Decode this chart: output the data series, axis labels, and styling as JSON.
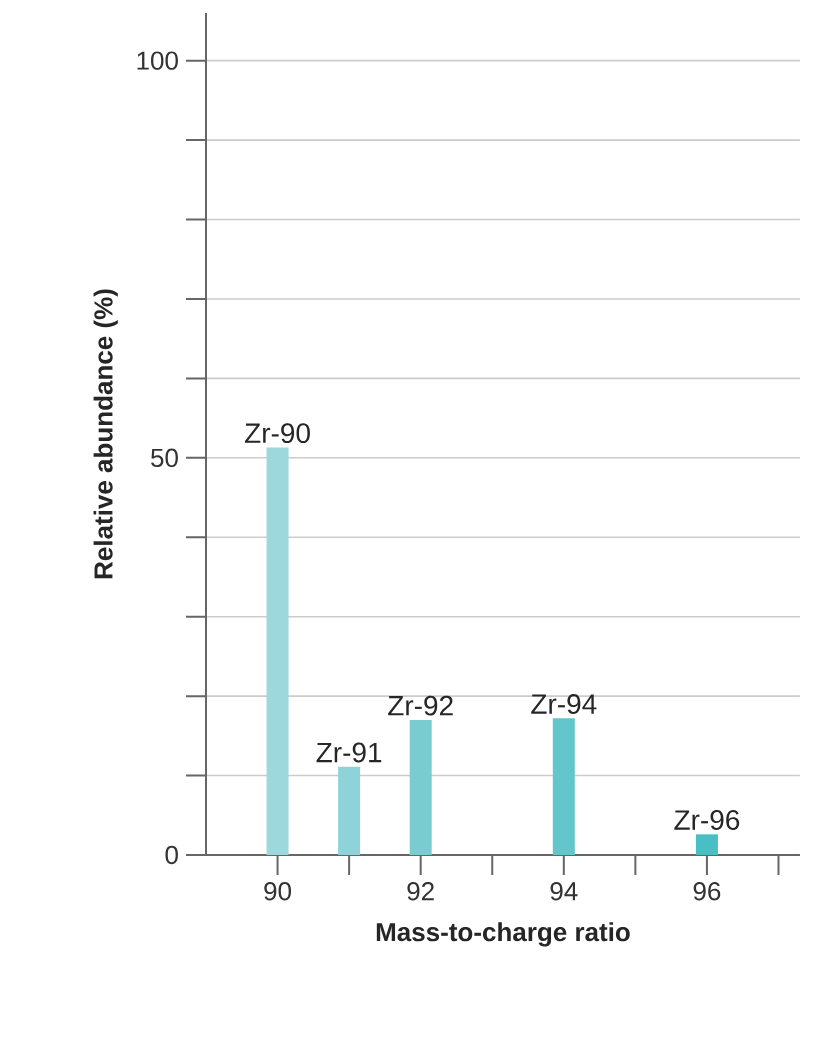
{
  "chart_data": {
    "type": "bar",
    "xlabel": "Mass-to-charge ratio",
    "ylabel": "Relative abundance (%)",
    "x": [
      90,
      91,
      92,
      94,
      96
    ],
    "values": [
      51.3,
      11.1,
      17.0,
      17.2,
      2.6
    ],
    "colors": [
      "#9dd8dc",
      "#8ed3d7",
      "#79cdd1",
      "#63c6cb",
      "#48bfc5"
    ],
    "xlim": [
      89,
      97.3
    ],
    "ylim": [
      0,
      106
    ],
    "xticks": [
      90,
      {
        "value": 91,
        "label": null
      },
      92,
      {
        "value": 93,
        "label": null
      },
      94,
      {
        "value": 95,
        "label": null
      },
      96,
      {
        "value": 97,
        "label": null
      }
    ],
    "yticks": [
      0,
      {
        "value": 10,
        "label": null
      },
      {
        "value": 20,
        "label": null
      },
      {
        "value": 30,
        "label": null
      },
      {
        "value": 40,
        "label": null
      },
      50,
      {
        "value": 60,
        "label": null
      },
      {
        "value": 70,
        "label": null
      },
      {
        "value": 80,
        "label": null
      },
      {
        "value": 90,
        "label": null
      },
      100
    ],
    "grid": "y",
    "annotations": [
      {
        "text": "Zr-90",
        "x": 90,
        "y": 51.3
      },
      {
        "text": "Zr-91",
        "x": 91,
        "y": 11.1
      },
      {
        "text": "Zr-92",
        "x": 92,
        "y": 17.0
      },
      {
        "text": "Zr-94",
        "x": 94,
        "y": 17.2
      },
      {
        "text": "Zr-96",
        "x": 96,
        "y": 2.6
      }
    ]
  }
}
